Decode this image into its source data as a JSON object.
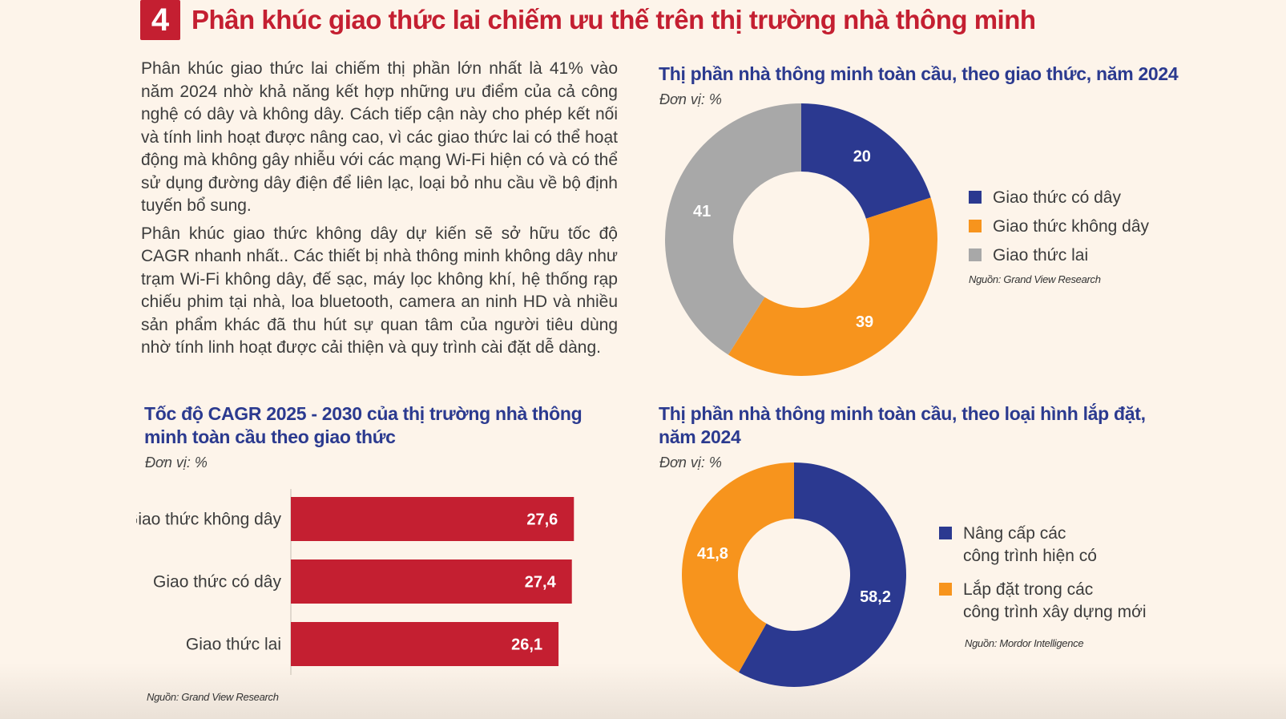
{
  "header": {
    "number": "4",
    "title": "Phân khúc giao thức lai chiếm ưu thế trên thị trường nhà thông minh"
  },
  "body": {
    "paragraph1": "Phân khúc giao thức lai chiếm thị phần lớn nhất là 41% vào năm 2024 nhờ khả năng kết hợp những ưu điểm của cả công nghệ có dây và không dây. Cách tiếp cận này cho phép kết nối và tính linh hoạt được nâng cao, vì các giao thức lai có thể hoạt động mà không gây nhiễu với các mạng Wi-Fi hiện có và có thể sử dụng đường dây điện để liên lạc, loại bỏ nhu cầu về bộ định tuyến bổ sung.",
    "paragraph2": "Phân khúc giao thức không dây dự kiến sẽ sở hữu tốc độ CAGR nhanh nhất.. Các thiết bị nhà thông minh không dây như trạm Wi-Fi không dây, đế sạc, máy lọc không khí, hệ thống rạp chiếu phim tại nhà, loa bluetooth, camera an ninh HD và nhiều sản phẩm khác đã thu hút sự quan tâm của người tiêu dùng nhờ tính linh hoạt được cải thiện và quy trình cài đặt dễ dàng."
  },
  "colors": {
    "navy": "#2b3990",
    "orange": "#f7941d",
    "gray": "#a8a8a8",
    "red": "#c41f31"
  },
  "chart_data": [
    {
      "type": "pie",
      "title": "Thị phần nhà thông minh toàn cầu, theo giao thức, năm 2024",
      "unit": "Đơn vị: %",
      "source": "Nguồn: Grand View Research",
      "legend_position": "right",
      "categories": [
        "Giao thức có dây",
        "Giao thức không dây",
        "Giao thức lai"
      ],
      "values": [
        20,
        39,
        41
      ],
      "labels": [
        "20",
        "39",
        "41"
      ]
    },
    {
      "type": "bar",
      "orientation": "horizontal",
      "title": "Tốc độ CAGR 2025 - 2030 của thị trường nhà thông minh toàn cầu theo giao thức",
      "unit": "Đơn vị: %",
      "source": "Nguồn: Grand View Research",
      "categories": [
        "Giao thức không dây",
        "Giao thức có dây",
        "Giao thức lai"
      ],
      "values": [
        27.6,
        27.4,
        26.1
      ],
      "labels": [
        "27,6",
        "27,4",
        "26,1"
      ]
    },
    {
      "type": "pie",
      "title": "Thị phần nhà thông minh toàn cầu, theo loại hình lắp đặt, năm 2024",
      "unit": "Đơn vị: %",
      "source": "Nguồn: Mordor Intelligence",
      "legend_position": "right",
      "categories": [
        "Nâng cấp các công trình hiện có",
        "Lắp đặt trong các công trình xây dựng mới"
      ],
      "legend_lines": [
        [
          "Nâng cấp các",
          "công trình hiện có"
        ],
        [
          "Lắp đặt trong các",
          "công trình xây dựng mới"
        ]
      ],
      "values": [
        58.2,
        41.8
      ],
      "labels": [
        "58,2",
        "41,8"
      ]
    }
  ]
}
